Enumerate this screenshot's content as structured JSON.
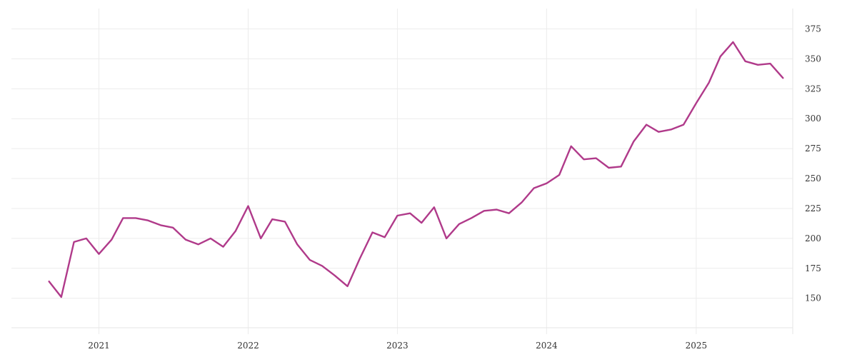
{
  "chart_data": {
    "type": "line",
    "title": "",
    "xlabel": "",
    "ylabel": "",
    "x_axis": {
      "type": "date",
      "range": [
        "2020-06-01",
        "2025-08-25"
      ],
      "ticks": [
        "2021-01-01",
        "2022-01-01",
        "2023-01-01",
        "2024-01-01",
        "2025-01-01"
      ],
      "tick_labels": [
        "2021",
        "2022",
        "2023",
        "2024",
        "2025"
      ]
    },
    "y_axis": {
      "range": [
        120,
        392
      ],
      "ticks": [
        150,
        175,
        200,
        225,
        250,
        275,
        300,
        325,
        350,
        375
      ],
      "tick_labels": [
        "150",
        "175",
        "200",
        "225",
        "250",
        "275",
        "300",
        "325",
        "350",
        "375"
      ],
      "position": "right"
    },
    "grid": true,
    "legend": "none",
    "series": [
      {
        "color": "#b03a8a",
        "x": [
          "2020-09-01",
          "2020-10-01",
          "2020-11-01",
          "2020-12-01",
          "2021-01-01",
          "2021-02-01",
          "2021-03-01",
          "2021-04-01",
          "2021-05-01",
          "2021-06-01",
          "2021-07-01",
          "2021-08-01",
          "2021-09-01",
          "2021-10-01",
          "2021-11-01",
          "2021-12-01",
          "2022-01-01",
          "2022-02-01",
          "2022-03-01",
          "2022-04-01",
          "2022-05-01",
          "2022-06-01",
          "2022-07-01",
          "2022-08-01",
          "2022-09-01",
          "2022-10-01",
          "2022-11-01",
          "2022-12-01",
          "2023-01-01",
          "2023-02-01",
          "2023-03-01",
          "2023-04-01",
          "2023-05-01",
          "2023-06-01",
          "2023-07-01",
          "2023-08-01",
          "2023-09-01",
          "2023-10-01",
          "2023-11-01",
          "2023-12-01",
          "2024-01-01",
          "2024-02-01",
          "2024-03-01",
          "2024-04-01",
          "2024-05-01",
          "2024-06-01",
          "2024-07-01",
          "2024-08-01",
          "2024-09-01",
          "2024-10-01",
          "2024-11-01",
          "2024-12-01",
          "2025-01-01",
          "2025-02-01",
          "2025-03-01",
          "2025-04-01",
          "2025-05-01",
          "2025-06-01",
          "2025-07-01",
          "2025-08-01"
        ],
        "values": [
          164,
          151,
          197,
          200,
          187,
          199,
          217,
          217,
          215,
          211,
          209,
          199,
          195,
          200,
          193,
          206,
          227,
          200,
          216,
          214,
          195,
          182,
          177,
          169,
          160,
          183,
          205,
          201,
          219,
          221,
          213,
          226,
          200,
          212,
          217,
          223,
          224,
          221,
          230,
          242,
          246,
          253,
          277,
          266,
          267,
          259,
          260,
          281,
          295,
          289,
          291,
          295,
          313,
          330,
          352,
          364,
          348,
          345,
          346,
          334
        ]
      }
    ]
  }
}
